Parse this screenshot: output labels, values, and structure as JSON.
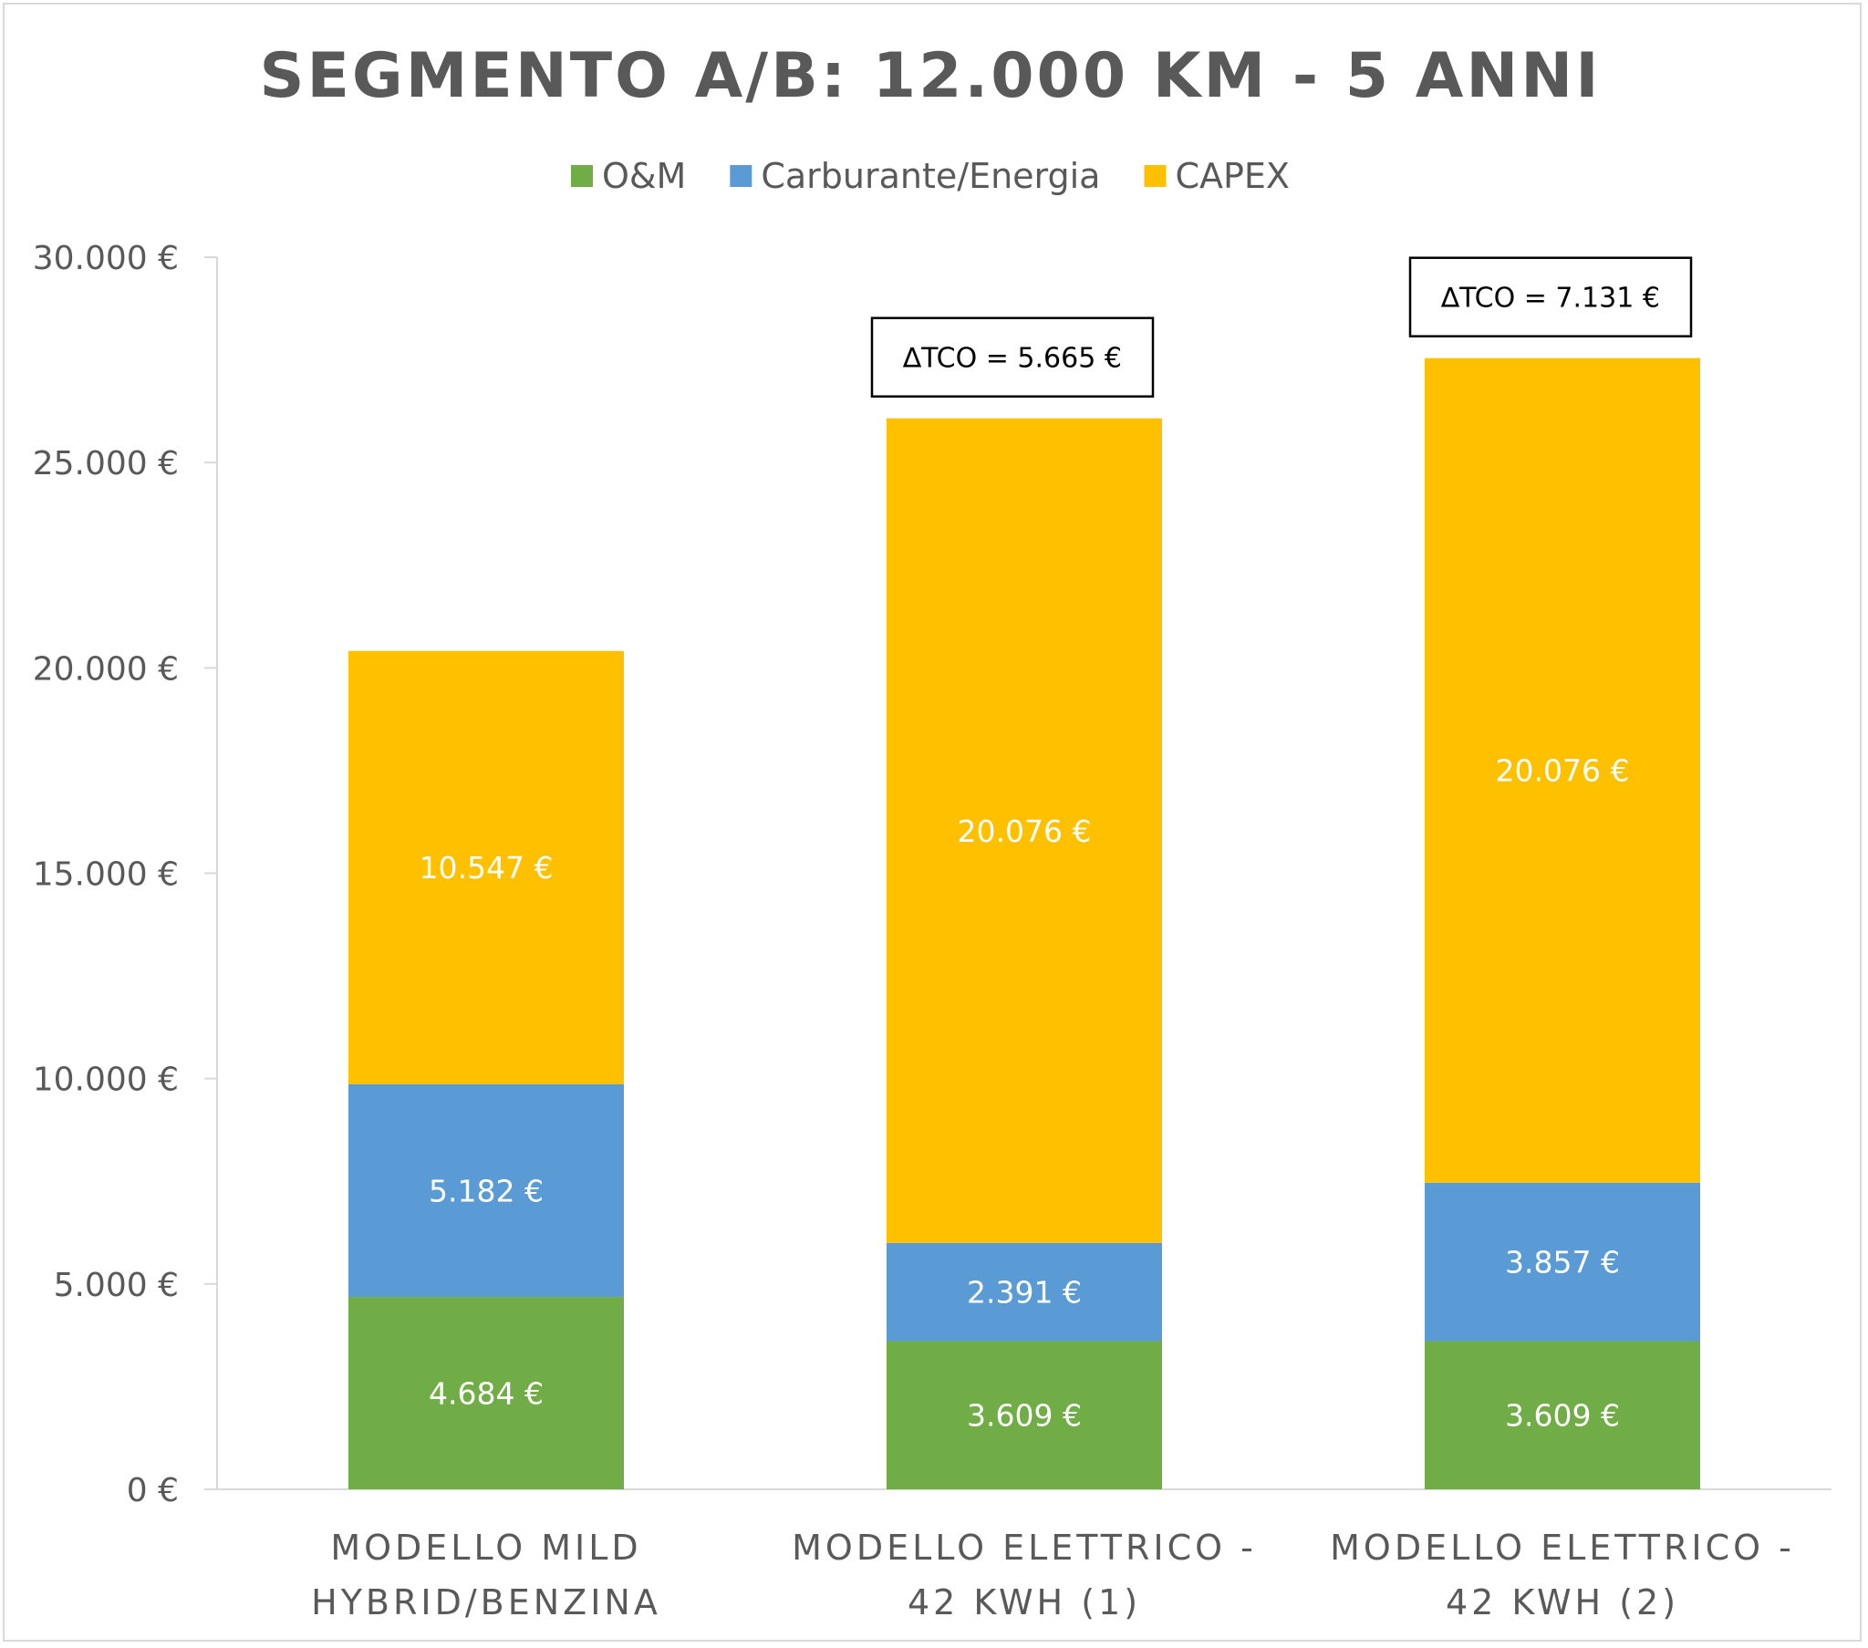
{
  "chart_data": {
    "type": "bar",
    "stacked": true,
    "title": "SEGMENTO A/B: 12.000 KM - 5 ANNI",
    "categories": [
      [
        "MODELLO MILD",
        "HYBRID/BENZINA"
      ],
      [
        "MODELLO ELETTRICO -",
        "42 KWH (1)"
      ],
      [
        "MODELLO ELETTRICO -",
        "42 KWH (2)"
      ]
    ],
    "series": [
      {
        "name": "O&M",
        "color": "#70AD47",
        "values": [
          4684,
          3609,
          3609
        ],
        "labels": [
          "4.684 €",
          "3.609 €",
          "3.609 €"
        ]
      },
      {
        "name": "Carburante/Energia",
        "color": "#5B9BD5",
        "values": [
          5182,
          2391,
          3857
        ],
        "labels": [
          "5.182 €",
          "2.391 €",
          "3.857 €"
        ]
      },
      {
        "name": "CAPEX",
        "color": "#FFC000",
        "values": [
          10547,
          20076,
          20076
        ],
        "labels": [
          "10.547 €",
          "20.076 €",
          "20.076 €"
        ]
      }
    ],
    "ylim": [
      0,
      30000
    ],
    "yticks": [
      0,
      5000,
      10000,
      15000,
      20000,
      25000,
      30000
    ],
    "ytick_labels": [
      "0 €",
      "5.000 €",
      "10.000 €",
      "15.000 €",
      "20.000 €",
      "25.000 €",
      "30.000 €"
    ],
    "legend_position": "top",
    "grid": false,
    "annotations": [
      {
        "category_index": 1,
        "text": "∆TCO = 5.665 €"
      },
      {
        "category_index": 2,
        "text": "∆TCO = 7.131 €"
      }
    ]
  }
}
